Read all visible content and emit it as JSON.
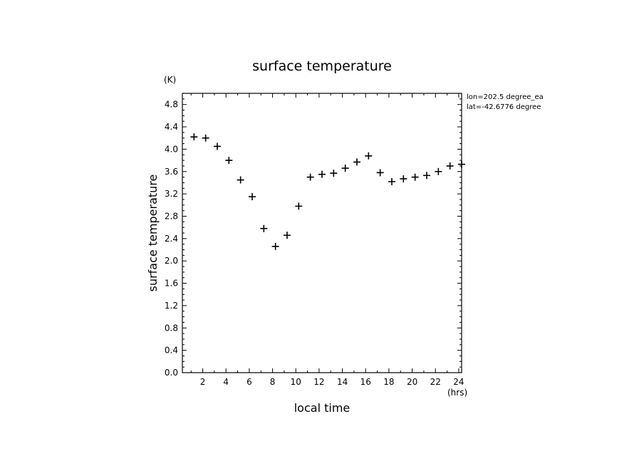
{
  "chart_data": {
    "type": "scatter",
    "title": "surface temperature",
    "xlabel": "local time",
    "ylabel": "surface temperature",
    "x_unit": "(hrs)",
    "y_unit": "(K)",
    "xlim": [
      0.25,
      24.25
    ],
    "ylim": [
      0,
      5.0
    ],
    "x_ticks": [
      2,
      4,
      6,
      8,
      10,
      12,
      14,
      16,
      18,
      20,
      22,
      24
    ],
    "y_ticks": [
      0.0,
      0.4,
      0.8,
      1.2,
      1.6,
      2.0,
      2.4,
      2.8,
      3.2,
      3.6,
      4.0,
      4.4,
      4.8
    ],
    "y_tick_labels": [
      "0.0",
      "0.4",
      "0.8",
      "1.2",
      "1.6",
      "2.0",
      "2.4",
      "2.8",
      "3.2",
      "3.6",
      "4.0",
      "4.4",
      "4.8"
    ],
    "grid": false,
    "marker": "+",
    "color": "#000000",
    "annotations": [
      "lon=202.5 degree_ea",
      "lat=-42.6776 degree"
    ],
    "x": [
      1.25,
      2.25,
      3.25,
      4.25,
      5.25,
      6.25,
      7.25,
      8.25,
      9.25,
      10.25,
      11.25,
      12.25,
      13.25,
      14.25,
      15.25,
      16.25,
      17.25,
      18.25,
      19.25,
      20.25,
      21.25,
      22.25,
      23.25,
      24.25
    ],
    "y": [
      4.22,
      4.2,
      4.05,
      3.8,
      3.45,
      3.15,
      2.58,
      2.26,
      2.46,
      2.98,
      3.5,
      3.55,
      3.57,
      3.66,
      3.77,
      3.88,
      3.58,
      3.42,
      3.47,
      3.5,
      3.53,
      3.6,
      3.7,
      3.73
    ]
  }
}
